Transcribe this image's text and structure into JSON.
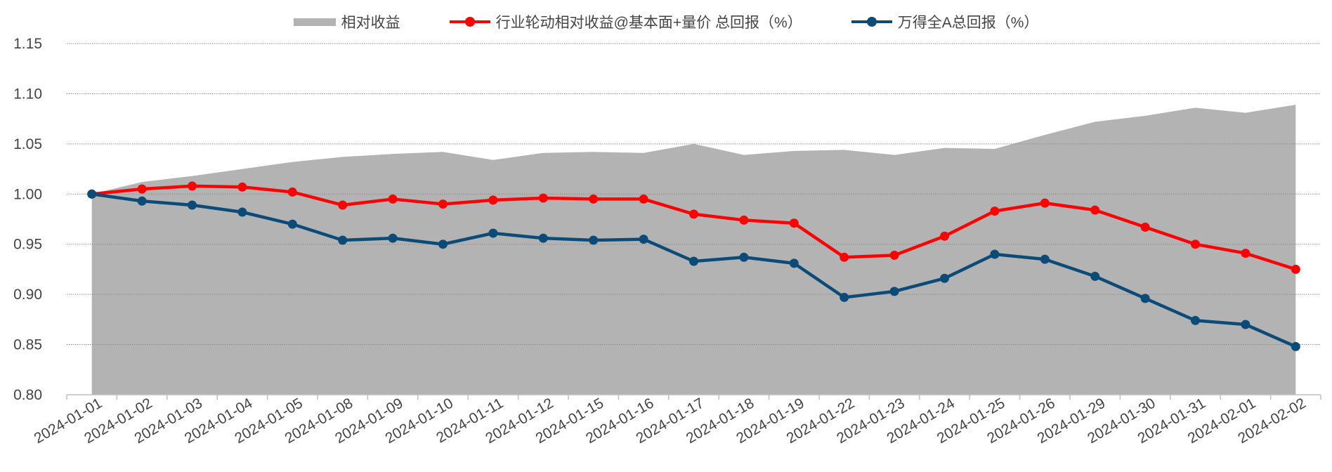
{
  "chart_data": {
    "type": "line",
    "categories": [
      "2024-01-01",
      "2024-01-02",
      "2024-01-03",
      "2024-01-04",
      "2024-01-05",
      "2024-01-08",
      "2024-01-09",
      "2024-01-10",
      "2024-01-11",
      "2024-01-12",
      "2024-01-15",
      "2024-01-16",
      "2024-01-17",
      "2024-01-18",
      "2024-01-19",
      "2024-01-22",
      "2024-01-23",
      "2024-01-24",
      "2024-01-25",
      "2024-01-26",
      "2024-01-29",
      "2024-01-30",
      "2024-01-31",
      "2024-02-01",
      "2024-02-02"
    ],
    "series": [
      {
        "name": "相对收益",
        "style": "area",
        "color": "#b3b3b3",
        "values": [
          1.0,
          1.012,
          1.018,
          1.025,
          1.032,
          1.037,
          1.04,
          1.042,
          1.034,
          1.041,
          1.042,
          1.041,
          1.05,
          1.039,
          1.043,
          1.044,
          1.039,
          1.046,
          1.045,
          1.059,
          1.072,
          1.078,
          1.086,
          1.081,
          1.089
        ]
      },
      {
        "name": "行业轮动相对收益@基本面+量价 总回报（%）",
        "style": "line",
        "color": "#ff0000",
        "values": [
          1.0,
          1.005,
          1.008,
          1.007,
          1.002,
          0.989,
          0.995,
          0.99,
          0.994,
          0.996,
          0.995,
          0.995,
          0.98,
          0.974,
          0.971,
          0.937,
          0.939,
          0.958,
          0.983,
          0.991,
          0.984,
          0.967,
          0.95,
          0.941,
          0.925
        ]
      },
      {
        "name": "万得全A总回报（%）",
        "style": "line",
        "color": "#0c4b78",
        "values": [
          1.0,
          0.993,
          0.989,
          0.982,
          0.97,
          0.954,
          0.956,
          0.95,
          0.961,
          0.956,
          0.954,
          0.955,
          0.933,
          0.937,
          0.931,
          0.897,
          0.903,
          0.916,
          0.94,
          0.935,
          0.918,
          0.896,
          0.874,
          0.87,
          0.848
        ]
      }
    ],
    "y_ticks": [
      "0.80",
      "0.85",
      "0.90",
      "0.95",
      "1.00",
      "1.05",
      "1.10",
      "1.15"
    ],
    "ylim": [
      0.8,
      1.15
    ],
    "grid": true,
    "legend_position": "top",
    "title": "",
    "xlabel": "",
    "ylabel": ""
  }
}
